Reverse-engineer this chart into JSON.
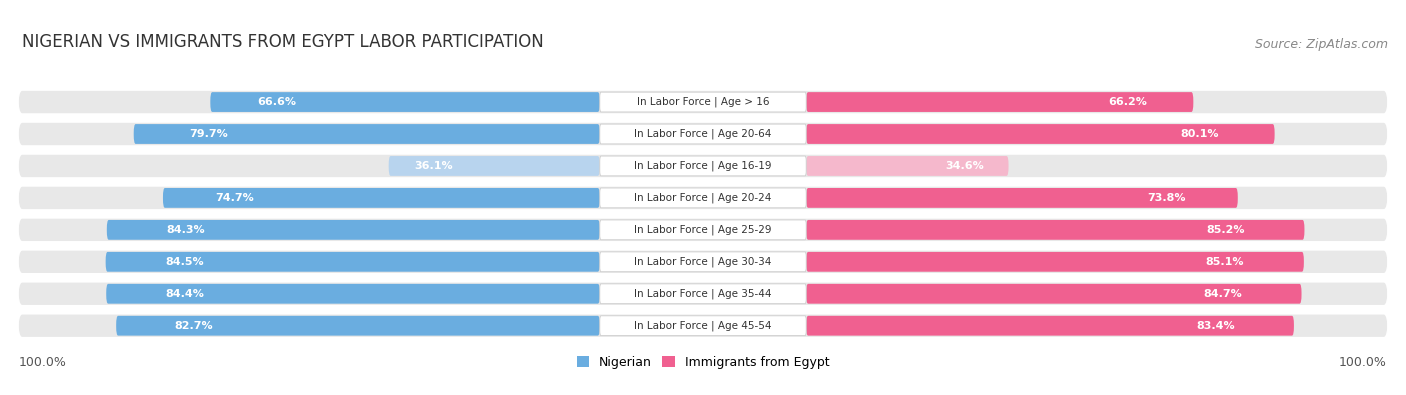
{
  "title": "NIGERIAN VS IMMIGRANTS FROM EGYPT LABOR PARTICIPATION",
  "source": "Source: ZipAtlas.com",
  "categories": [
    "In Labor Force | Age > 16",
    "In Labor Force | Age 20-64",
    "In Labor Force | Age 16-19",
    "In Labor Force | Age 20-24",
    "In Labor Force | Age 25-29",
    "In Labor Force | Age 30-34",
    "In Labor Force | Age 35-44",
    "In Labor Force | Age 45-54"
  ],
  "nigerian_values": [
    66.6,
    79.7,
    36.1,
    74.7,
    84.3,
    84.5,
    84.4,
    82.7
  ],
  "egypt_values": [
    66.2,
    80.1,
    34.6,
    73.8,
    85.2,
    85.1,
    84.7,
    83.4
  ],
  "nigerian_color": "#6aade0",
  "nigerian_color_light": "#b8d4ee",
  "egypt_color": "#f06090",
  "egypt_color_light": "#f5b8cc",
  "row_bg_color": "#e8e8e8",
  "max_value": 100.0,
  "legend_nigerian": "Nigerian",
  "legend_egypt": "Immigrants from Egypt",
  "title_fontsize": 12,
  "source_fontsize": 9,
  "value_fontsize": 8,
  "cat_fontsize": 7.5,
  "footer_fontsize": 9
}
